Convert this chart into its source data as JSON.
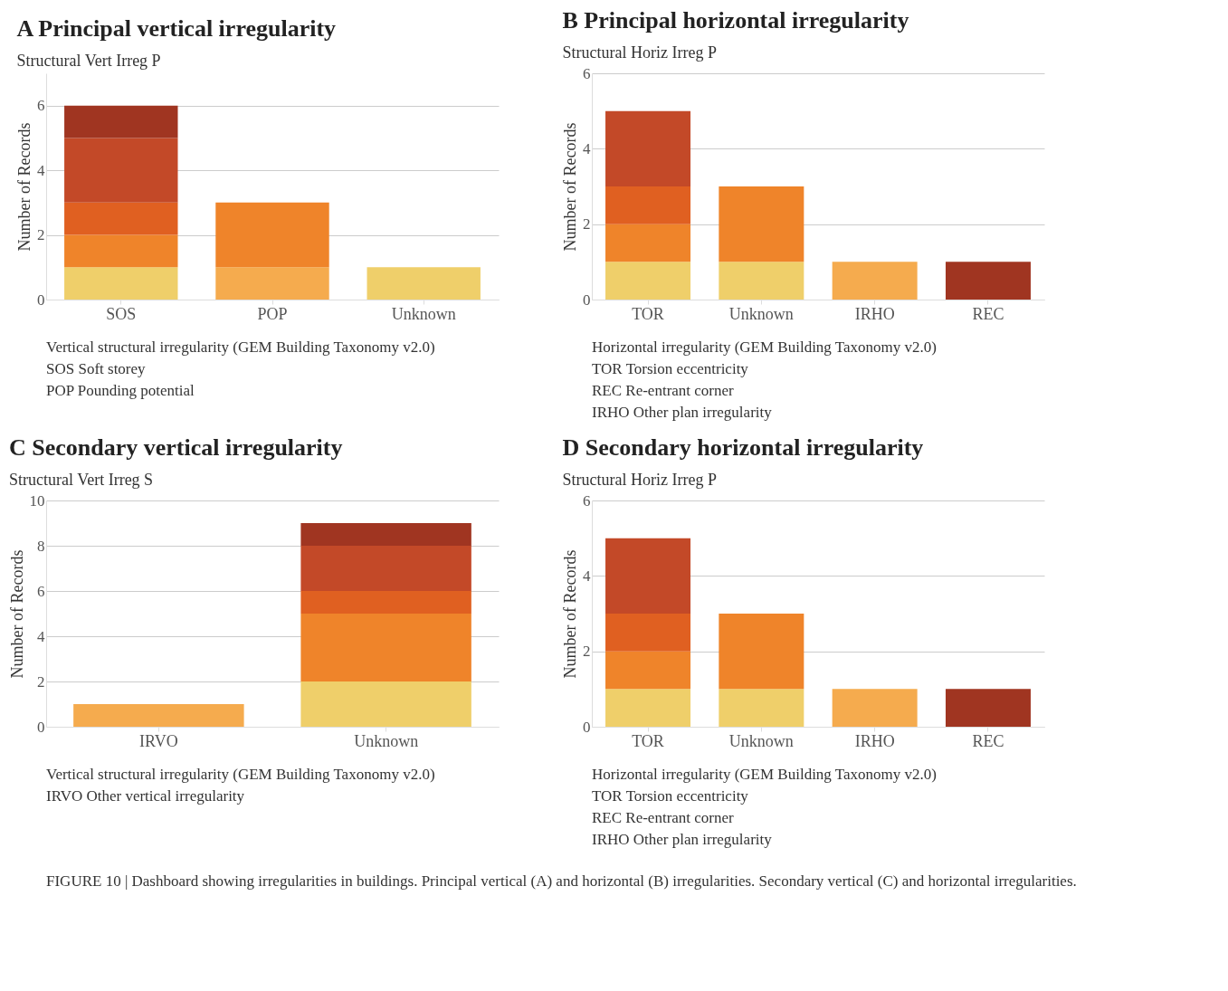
{
  "chart_data": [
    {
      "type": "bar",
      "stacked": true,
      "title": "A  Principal vertical irregularity",
      "subtitle": "Structural Vert Irreg P",
      "ylabel": "Number of Records",
      "categories": [
        "SOS",
        "POP",
        "Unknown"
      ],
      "ylim": [
        0,
        7
      ],
      "yticks": [
        0,
        2,
        4,
        6
      ],
      "grid": "y",
      "series": [
        {
          "color": "#efcf6a",
          "values": [
            1,
            null,
            1
          ]
        },
        {
          "color": "#f5ab4e",
          "values": [
            null,
            1,
            null
          ]
        },
        {
          "color": "#ef842a",
          "values": [
            1,
            2,
            null
          ]
        },
        {
          "color": "#e06021",
          "values": [
            1,
            null,
            null
          ]
        },
        {
          "color": "#c34928",
          "values": [
            2,
            null,
            null
          ]
        },
        {
          "color": "#a03521",
          "values": [
            1,
            null,
            null
          ]
        }
      ],
      "annotations": [
        "Vertical structural irregularity (GEM Building Taxonomy v2.0)",
        "SOS   Soft storey",
        "POP   Pounding potential"
      ]
    },
    {
      "type": "bar",
      "stacked": true,
      "title": "B  Principal horizontal irregularity",
      "subtitle": "Structural Horiz Irreg P",
      "ylabel": "Number of Records",
      "categories": [
        "TOR",
        "Unknown",
        "IRHO",
        "REC"
      ],
      "ylim": [
        0,
        6
      ],
      "yticks": [
        0,
        2,
        4,
        6
      ],
      "grid": "y",
      "series": [
        {
          "color": "#efcf6a",
          "values": [
            1,
            1,
            null,
            null
          ]
        },
        {
          "color": "#f5ab4e",
          "values": [
            null,
            null,
            1,
            null
          ]
        },
        {
          "color": "#ef842a",
          "values": [
            1,
            2,
            null,
            null
          ]
        },
        {
          "color": "#e06021",
          "values": [
            1,
            null,
            null,
            null
          ]
        },
        {
          "color": "#c34928",
          "values": [
            2,
            null,
            null,
            null
          ]
        },
        {
          "color": "#a03521",
          "values": [
            null,
            null,
            null,
            1
          ]
        }
      ],
      "annotations": [
        "Horizontal irregularity (GEM Building Taxonomy v2.0)",
        "TOR    Torsion eccentricity",
        "REC    Re-entrant corner",
        "IRHO  Other plan irregularity"
      ]
    },
    {
      "type": "bar",
      "stacked": true,
      "title": "C  Secondary vertical irregularity",
      "subtitle": "Structural Vert Irreg S",
      "ylabel": "Number of Records",
      "categories": [
        "IRVO",
        "Unknown"
      ],
      "ylim": [
        0,
        10
      ],
      "yticks": [
        0,
        2,
        4,
        6,
        8,
        10
      ],
      "grid": "y",
      "series": [
        {
          "color": "#efcf6a",
          "values": [
            null,
            2
          ]
        },
        {
          "color": "#f5ab4e",
          "values": [
            1,
            null
          ]
        },
        {
          "color": "#ef842a",
          "values": [
            null,
            3
          ]
        },
        {
          "color": "#e06021",
          "values": [
            null,
            1
          ]
        },
        {
          "color": "#c34928",
          "values": [
            null,
            2
          ]
        },
        {
          "color": "#a03521",
          "values": [
            null,
            1
          ]
        }
      ],
      "annotations": [
        "Vertical structural irregularity (GEM Building Taxonomy v2.0)",
        "IRVO   Other vertical irregularity"
      ]
    },
    {
      "type": "bar",
      "stacked": true,
      "title": "D  Secondary horizontal irregularity",
      "subtitle": "Structural Horiz Irreg P",
      "ylabel": "Number of Records",
      "categories": [
        "TOR",
        "Unknown",
        "IRHO",
        "REC"
      ],
      "ylim": [
        0,
        6
      ],
      "yticks": [
        0,
        2,
        4,
        6
      ],
      "grid": "y",
      "series": [
        {
          "color": "#efcf6a",
          "values": [
            1,
            1,
            null,
            null
          ]
        },
        {
          "color": "#f5ab4e",
          "values": [
            null,
            null,
            1,
            null
          ]
        },
        {
          "color": "#ef842a",
          "values": [
            1,
            2,
            null,
            null
          ]
        },
        {
          "color": "#e06021",
          "values": [
            1,
            null,
            null,
            null
          ]
        },
        {
          "color": "#c34928",
          "values": [
            2,
            null,
            null,
            null
          ]
        },
        {
          "color": "#a03521",
          "values": [
            null,
            null,
            null,
            1
          ]
        }
      ],
      "annotations": [
        "Horizontal irregularity (GEM Building Taxonomy v2.0)",
        "TOR    Torsion eccentricity",
        "REC    Re-entrant corner",
        "IRHO  Other plan irregularity"
      ]
    },
    {
      "type": "other",
      "annotations": [
        "FIGURE 10 | Dashboard showing irregularities in buildings. Principal vertical (A) and horizontal (B) irregularities. Secondary vertical (C) and horizontal irregularities."
      ]
    }
  ]
}
